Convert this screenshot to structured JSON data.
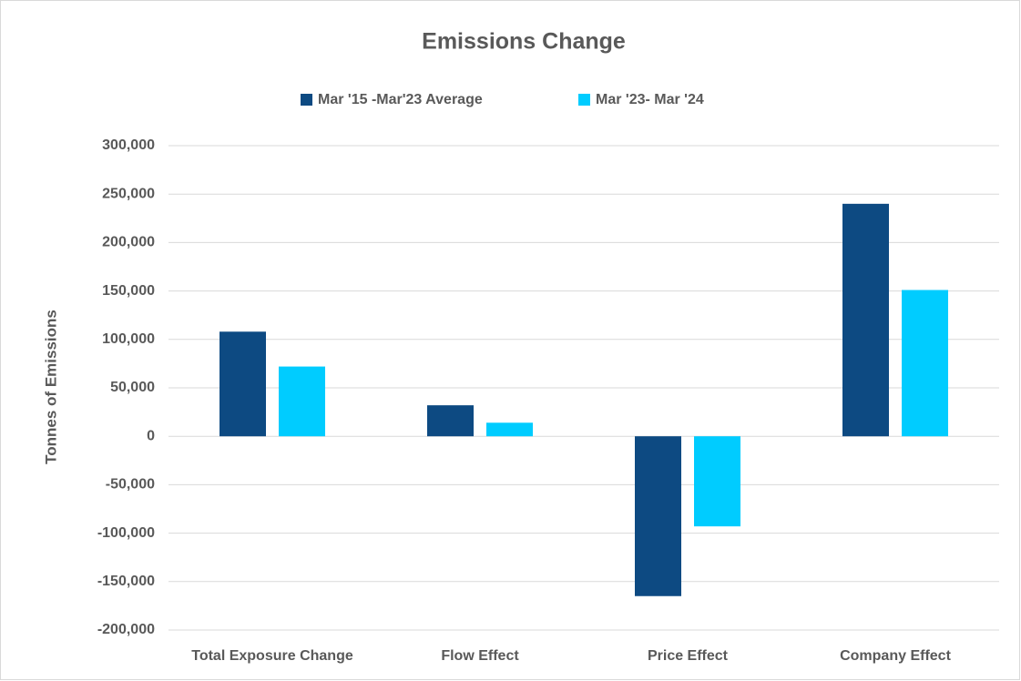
{
  "chart_data": {
    "type": "bar",
    "title": "Emissions Change",
    "y_axis_label": "Tonnes of Emissions",
    "categories": [
      "Total Exposure Change",
      "Flow Effect",
      "Price Effect",
      "Company Effect"
    ],
    "series": [
      {
        "name": "Mar '15 -Mar'23 Average",
        "color": "#0d4a82",
        "values": [
          108000,
          32000,
          -165000,
          240000
        ]
      },
      {
        "name": "Mar '23- Mar '24",
        "color": "#00ccff",
        "values": [
          72000,
          14000,
          -93000,
          151000
        ]
      }
    ],
    "ylim": [
      -200000,
      300000
    ],
    "yticks": [
      {
        "value": -200000,
        "label": "-200,000"
      },
      {
        "value": -150000,
        "label": "-150,000"
      },
      {
        "value": -100000,
        "label": "-100,000"
      },
      {
        "value": -50000,
        "label": "-50,000"
      },
      0,
      {
        "value": 50000,
        "label": "50,000"
      },
      {
        "value": 100000,
        "label": "100,000"
      },
      {
        "value": 150000,
        "label": "150,000"
      },
      {
        "value": 200000,
        "label": "200,000"
      },
      {
        "value": 250000,
        "label": "250,000"
      },
      {
        "value": 300000,
        "label": "300,000"
      }
    ],
    "grid": true,
    "legend": "top"
  }
}
